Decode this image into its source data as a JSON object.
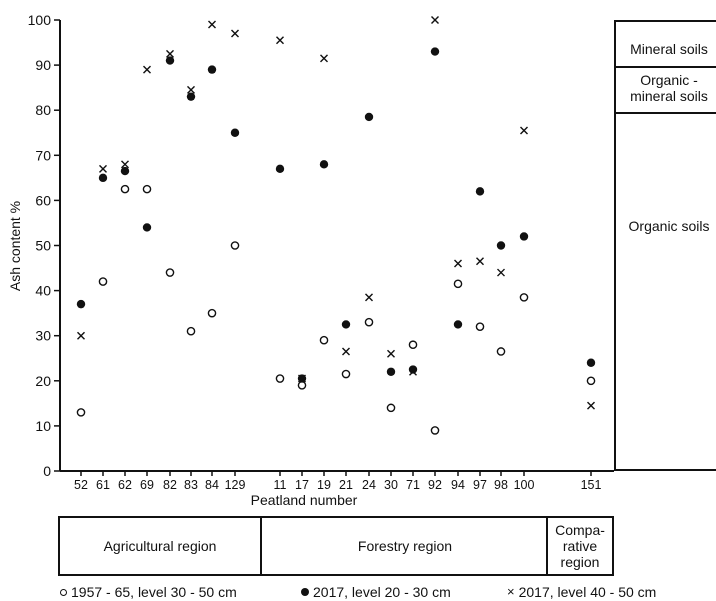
{
  "chart_data": {
    "type": "scatter",
    "title": "",
    "xlabel": "Peatland number",
    "ylabel": "Ash content %",
    "ylim": [
      0,
      100
    ],
    "yticks": [
      0,
      10,
      20,
      30,
      40,
      50,
      60,
      70,
      80,
      90,
      100
    ],
    "categories": [
      "52",
      "61",
      "62",
      "69",
      "82",
      "83",
      "84",
      "129",
      "11",
      "17",
      "19",
      "21",
      "24",
      "30",
      "71",
      "92",
      "94",
      "97",
      "98",
      "100",
      "151"
    ],
    "series": [
      {
        "name": "1957 - 65, level 30 - 50 cm",
        "marker": "open-circle",
        "values": [
          13,
          42,
          62.5,
          62.5,
          44,
          31,
          35,
          50,
          20.5,
          19,
          29,
          21.5,
          33,
          14,
          28,
          9,
          41.5,
          32,
          26.5,
          38.5,
          20
        ]
      },
      {
        "name": "2017, level 20 - 30 cm",
        "marker": "filled-circle",
        "values": [
          37,
          65,
          66.5,
          54,
          91,
          83,
          89,
          75,
          67,
          20.5,
          68,
          32.5,
          78.5,
          22,
          22.5,
          93,
          32.5,
          62,
          50,
          52,
          24
        ]
      },
      {
        "name": "2017, level 40 - 50 cm",
        "marker": "cross",
        "values": [
          30,
          67,
          68,
          89,
          92.5,
          84.5,
          99,
          97,
          95.5,
          20.5,
          91.5,
          26.5,
          38.5,
          26,
          22,
          100,
          46,
          46.5,
          44,
          75.5,
          14.5
        ]
      }
    ],
    "grid": false,
    "legend_placement": "bottom",
    "soil_classes": [
      {
        "label_lines": [
          "Mineral soils"
        ]
      },
      {
        "label_lines": [
          "Organic -",
          "mineral soils"
        ]
      },
      {
        "label_lines": [
          "Organic soils"
        ]
      }
    ],
    "regions": [
      {
        "label_lines": [
          "Agricultural region"
        ]
      },
      {
        "label_lines": [
          "Forestry region"
        ]
      },
      {
        "label_lines": [
          "Compa-",
          "rative",
          "region"
        ]
      }
    ]
  }
}
